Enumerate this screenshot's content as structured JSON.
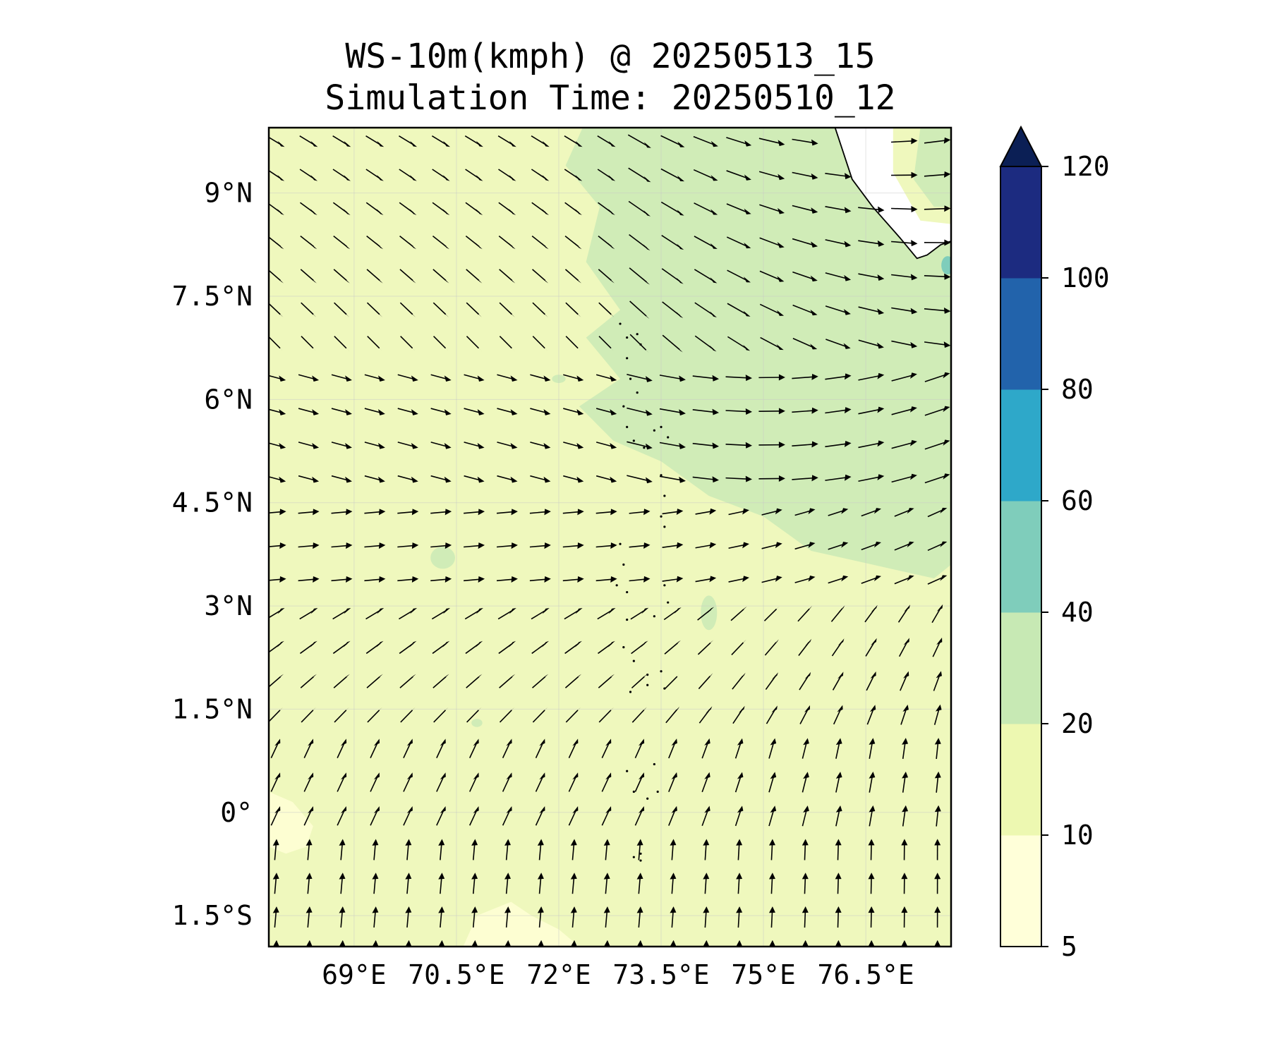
{
  "title_line1": "WS-10m(kmph) @ 20250513_15",
  "title_line2": "Simulation Time: 20250510_12",
  "map": {
    "lon_range": [
      67.75,
      77.75
    ],
    "lat_range": [
      -1.95,
      9.95
    ],
    "lat_ticks": [
      {
        "value": 9,
        "label": "9°N"
      },
      {
        "value": 7.5,
        "label": "7.5°N"
      },
      {
        "value": 6,
        "label": "6°N"
      },
      {
        "value": 4.5,
        "label": "4.5°N"
      },
      {
        "value": 3,
        "label": "3°N"
      },
      {
        "value": 1.5,
        "label": "1.5°N"
      },
      {
        "value": 0,
        "label": "0°"
      },
      {
        "value": -1.5,
        "label": "1.5°S"
      }
    ],
    "lon_ticks": [
      {
        "value": 69,
        "label": "69°E"
      },
      {
        "value": 70.5,
        "label": "70.5°E"
      },
      {
        "value": 72,
        "label": "72°E"
      },
      {
        "value": 73.5,
        "label": "73.5°E"
      },
      {
        "value": 75,
        "label": "75°E"
      },
      {
        "value": 76.5,
        "label": "76.5°E"
      }
    ],
    "gridlines": true,
    "field_colors": {
      "lt10": "#fdfed2",
      "10to20": "#eff8bd",
      "20to40": "#d0ecb7",
      "40to60": "#7ecdbb",
      "land": "#ffffff"
    },
    "vector_color": "#000000"
  },
  "colorbar": {
    "levels": [
      5,
      10,
      20,
      40,
      60,
      80,
      100,
      120
    ],
    "colors": [
      "#ffffd9",
      "#edf8b1",
      "#c7e9b4",
      "#7fcdbb",
      "#2ea8c9",
      "#2263ab",
      "#1c2b80"
    ],
    "extend_color": "#0b1f55",
    "labels": [
      "5",
      "10",
      "20",
      "40",
      "60",
      "80",
      "100",
      "120"
    ]
  }
}
